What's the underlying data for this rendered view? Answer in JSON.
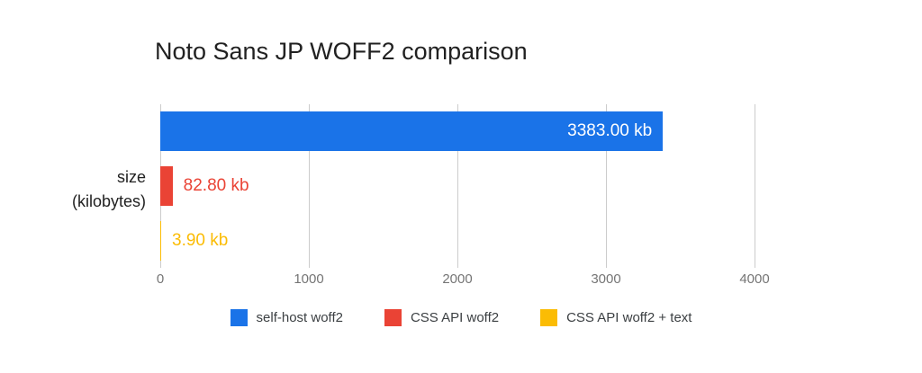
{
  "chart_data": {
    "type": "bar",
    "orientation": "horizontal",
    "title": "Noto Sans JP WOFF2 comparison",
    "xlabel": "",
    "ylabel": "size (kilobytes)",
    "categories": [
      "self-host woff2",
      "CSS API woff2",
      "CSS API woff2 + text"
    ],
    "values": [
      3383.0,
      82.8,
      3.9
    ],
    "value_labels": [
      "3383.00 kb",
      "82.80 kb",
      "3.90 kb"
    ],
    "colors": [
      "#1a73e8",
      "#ea4335",
      "#fbbc04"
    ],
    "xlim": [
      0,
      4000
    ],
    "xticks": [
      0,
      1000,
      2000,
      3000,
      4000
    ],
    "grid": true,
    "legend_position": "bottom"
  },
  "axis": {
    "ylabel_line1": "size",
    "ylabel_line2": "(kilobytes)"
  },
  "legend": {
    "items": [
      {
        "label": "self-host woff2",
        "color": "#1a73e8"
      },
      {
        "label": "CSS API woff2",
        "color": "#ea4335"
      },
      {
        "label": "CSS API woff2 + text",
        "color": "#fbbc04"
      }
    ]
  }
}
